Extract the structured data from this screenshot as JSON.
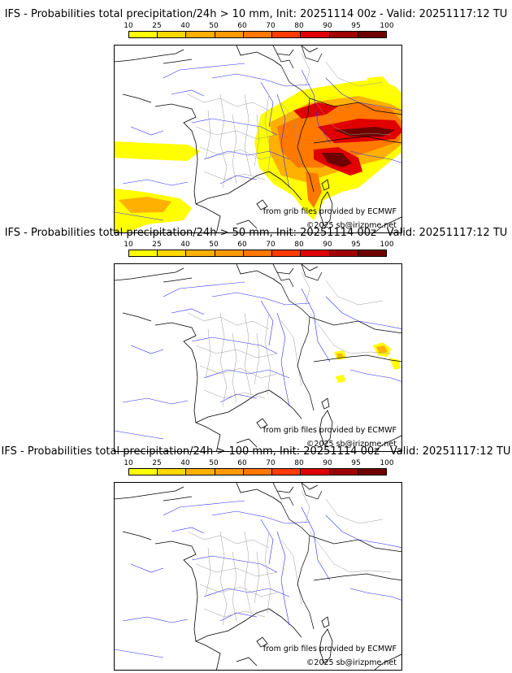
{
  "panels": [
    {
      "title": "IFS - Probabilities total precipitation/24h > 10 mm, Init: 20251114 00z - Valid: 20251117:12 TU",
      "level": "high"
    },
    {
      "title": "IFS - Probabilities total precipitation/24h > 50 mm, Init: 20251114 00z - Valid: 20251117:12 TU",
      "level": "low"
    },
    {
      "title": "IFS - Probabilities total precipitation/24h > 100 mm, Init: 20251114 00z - Valid: 20251117:12 TU",
      "level": "none"
    }
  ],
  "legend": {
    "ticks": [
      "10",
      "25",
      "40",
      "50",
      "60",
      "70",
      "80",
      "90",
      "95",
      "100"
    ],
    "colors": [
      "#ffff00",
      "#ffd700",
      "#ffb000",
      "#ff9a00",
      "#ff7800",
      "#ff3c00",
      "#e00000",
      "#a00000",
      "#700000"
    ]
  },
  "credits": {
    "source": "from grib files provided by ECMWF",
    "copyright": "©2025 sb@irizpme.net"
  }
}
